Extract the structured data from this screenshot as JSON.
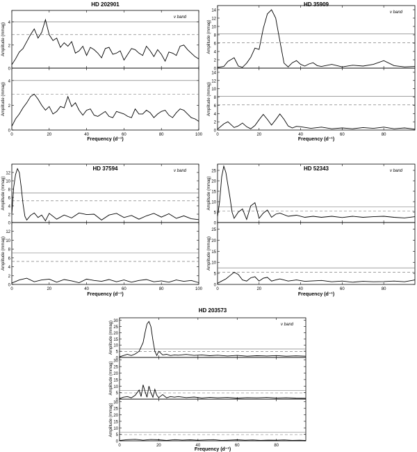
{
  "figure_title": "",
  "chart_data": [
    {
      "type": "line",
      "title": "HD 202901",
      "band_label": "v band",
      "xlabel": "Frequency (d⁻¹)",
      "ylabel": "Amplitude (mmag)",
      "xlim": [
        0,
        100
      ],
      "xticks": [
        0,
        20,
        40,
        60,
        80,
        100
      ],
      "grid": false,
      "panels": [
        {
          "ylim": [
            0,
            5
          ],
          "yticks": [
            0,
            2,
            4
          ],
          "threshold_solid": 4.0,
          "threshold_dashed": 2.9,
          "x": [
            0,
            2,
            4,
            6,
            8,
            10,
            12,
            14,
            16,
            18,
            20,
            22,
            24,
            26,
            28,
            30,
            32,
            34,
            36,
            38,
            40,
            42,
            44,
            46,
            48,
            50,
            52,
            54,
            56,
            58,
            60,
            62,
            64,
            66,
            68,
            70,
            72,
            74,
            76,
            78,
            80,
            82,
            84,
            86,
            88,
            90,
            92,
            94,
            96,
            98,
            100
          ],
          "y": [
            0.3,
            0.8,
            1.4,
            1.7,
            2.3,
            2.9,
            3.4,
            2.6,
            3.1,
            4.2,
            2.9,
            2.4,
            2.6,
            1.8,
            2.2,
            1.9,
            2.3,
            1.3,
            1.5,
            1.9,
            1.1,
            1.8,
            1.6,
            1.3,
            0.9,
            1.7,
            1.8,
            1.2,
            1.3,
            1.5,
            0.7,
            1.2,
            1.7,
            1.6,
            1.3,
            1.1,
            1.9,
            1.5,
            1.0,
            1.6,
            1.2,
            0.6,
            1.4,
            1.3,
            1.1,
            1.9,
            2.0,
            1.6,
            1.3,
            1.0,
            0.8
          ]
        },
        {
          "ylim": [
            0,
            5
          ],
          "yticks": [
            0,
            2,
            4
          ],
          "threshold_solid": 4.0,
          "threshold_dashed": 2.9,
          "x": [
            0,
            2,
            4,
            6,
            8,
            10,
            12,
            14,
            16,
            18,
            20,
            22,
            24,
            26,
            28,
            30,
            32,
            34,
            36,
            38,
            40,
            42,
            44,
            46,
            48,
            50,
            52,
            54,
            56,
            58,
            60,
            62,
            64,
            66,
            68,
            70,
            72,
            74,
            76,
            78,
            80,
            82,
            84,
            86,
            88,
            90,
            92,
            94,
            96,
            98,
            100
          ],
          "y": [
            0.3,
            0.9,
            1.3,
            1.8,
            2.2,
            2.7,
            2.9,
            2.5,
            2.0,
            1.6,
            1.9,
            1.3,
            1.5,
            1.9,
            1.8,
            2.7,
            1.9,
            2.2,
            1.6,
            1.2,
            1.6,
            1.7,
            1.2,
            1.1,
            1.3,
            1.5,
            1.1,
            1.0,
            1.5,
            1.4,
            1.3,
            1.1,
            1.0,
            1.7,
            1.3,
            1.3,
            1.6,
            1.4,
            1.0,
            1.3,
            1.5,
            1.6,
            1.2,
            1.0,
            1.4,
            1.7,
            1.6,
            1.3,
            1.0,
            0.9,
            0.7
          ]
        }
      ]
    },
    {
      "type": "line",
      "title": "HD 35909",
      "band_label": "v band",
      "xlabel": "Frequency (d⁻¹)",
      "ylabel": "Amplitude (mmag)",
      "xlim": [
        0,
        95
      ],
      "xticks": [
        0,
        20,
        40,
        60,
        80
      ],
      "grid": false,
      "panels": [
        {
          "ylim": [
            0,
            15
          ],
          "yticks": [
            0,
            2,
            4,
            6,
            8,
            10,
            12,
            14
          ],
          "threshold_solid": 8.2,
          "threshold_dashed": 6.1,
          "x": [
            0,
            3,
            5,
            8,
            10,
            12,
            14,
            16,
            18,
            20,
            22,
            24,
            26,
            28,
            30,
            32,
            34,
            36,
            38,
            40,
            42,
            44,
            46,
            48,
            50,
            55,
            60,
            65,
            70,
            75,
            80,
            85,
            90,
            95
          ],
          "y": [
            0.2,
            0.4,
            1.6,
            2.5,
            0.5,
            0.2,
            1.2,
            2.6,
            4.8,
            4.5,
            9.5,
            13.0,
            14.0,
            12.0,
            6.5,
            1.2,
            0.3,
            1.3,
            1.8,
            0.9,
            0.5,
            1.0,
            1.3,
            0.6,
            0.4,
            0.9,
            0.3,
            0.7,
            0.5,
            0.9,
            1.8,
            0.6,
            0.3,
            0.4
          ]
        },
        {
          "ylim": [
            0,
            15
          ],
          "yticks": [
            0,
            2,
            4,
            6,
            8,
            10,
            12,
            14
          ],
          "threshold_solid": 8.2,
          "threshold_dashed": 6.1,
          "x": [
            0,
            3,
            5,
            8,
            10,
            12,
            14,
            16,
            18,
            20,
            22,
            24,
            26,
            28,
            30,
            32,
            34,
            36,
            38,
            40,
            45,
            50,
            55,
            60,
            65,
            70,
            75,
            80,
            85,
            90,
            95
          ],
          "y": [
            0.2,
            1.5,
            2.0,
            0.6,
            1.0,
            1.7,
            0.8,
            0.3,
            1.1,
            2.5,
            3.8,
            2.6,
            1.2,
            2.5,
            3.9,
            2.6,
            1.0,
            0.5,
            0.9,
            0.8,
            0.4,
            0.7,
            0.3,
            0.5,
            0.3,
            0.6,
            0.4,
            0.7,
            0.3,
            0.5,
            0.2
          ]
        }
      ]
    },
    {
      "type": "line",
      "title": "HD 37594",
      "band_label": "v band",
      "xlabel": "Frequency (d⁻¹)",
      "ylabel": "Amplitude (mmag)",
      "xlim": [
        0,
        100
      ],
      "xticks": [
        0,
        20,
        40,
        60,
        80,
        100
      ],
      "grid": false,
      "panels": [
        {
          "ylim": [
            0,
            14
          ],
          "yticks": [
            0,
            2,
            4,
            6,
            8,
            10,
            12
          ],
          "threshold_solid": 7.1,
          "threshold_dashed": 5.2,
          "x": [
            0,
            1,
            2,
            3,
            4,
            5,
            6,
            7,
            8,
            10,
            12,
            14,
            16,
            18,
            20,
            24,
            28,
            32,
            36,
            40,
            44,
            48,
            52,
            56,
            60,
            64,
            68,
            72,
            76,
            80,
            84,
            88,
            92,
            96,
            100
          ],
          "y": [
            2.0,
            8.5,
            11.5,
            12.9,
            12.0,
            8.5,
            4.5,
            1.5,
            0.6,
            1.7,
            2.3,
            1.2,
            1.8,
            0.4,
            2.2,
            0.8,
            1.8,
            1.1,
            2.3,
            1.9,
            2.0,
            0.6,
            1.8,
            2.2,
            1.2,
            1.7,
            0.8,
            1.6,
            2.2,
            1.3,
            2.1,
            1.0,
            1.6,
            0.9,
            0.7
          ]
        },
        {
          "ylim": [
            0,
            14
          ],
          "yticks": [
            0,
            2,
            4,
            6,
            8,
            10,
            12
          ],
          "threshold_solid": 7.1,
          "threshold_dashed": 5.2,
          "x": [
            0,
            4,
            8,
            12,
            16,
            20,
            24,
            28,
            32,
            36,
            40,
            44,
            48,
            52,
            56,
            60,
            64,
            68,
            72,
            76,
            80,
            84,
            88,
            92,
            96,
            100
          ],
          "y": [
            0.3,
            1.0,
            1.4,
            0.6,
            1.0,
            1.2,
            0.5,
            1.1,
            0.8,
            0.4,
            1.2,
            0.9,
            0.7,
            1.1,
            0.6,
            1.0,
            0.5,
            0.9,
            1.1,
            0.6,
            0.8,
            0.5,
            1.0,
            0.7,
            0.9,
            0.4
          ]
        }
      ]
    },
    {
      "type": "line",
      "title": "HD 52343",
      "band_label": "v band",
      "xlabel": "Frequency (d⁻¹)",
      "ylabel": "Amplitude (mmag)",
      "xlim": [
        0,
        95
      ],
      "xticks": [
        0,
        20,
        40,
        60,
        80
      ],
      "grid": false,
      "panels": [
        {
          "ylim": [
            0,
            28
          ],
          "yticks": [
            0,
            5,
            10,
            15,
            20,
            25
          ],
          "threshold_solid": 7.5,
          "threshold_dashed": 5.5,
          "x": [
            0,
            1,
            2,
            3,
            4,
            5,
            6,
            7,
            8,
            10,
            12,
            14,
            16,
            18,
            20,
            22,
            24,
            26,
            28,
            30,
            34,
            38,
            42,
            46,
            50,
            55,
            60,
            65,
            70,
            75,
            80,
            85,
            90,
            95
          ],
          "y": [
            3.0,
            10,
            22,
            27,
            24,
            18,
            12,
            5,
            2,
            5.0,
            6.5,
            1.5,
            8.0,
            9.5,
            2.0,
            4.5,
            6.0,
            2.5,
            4.0,
            4.5,
            3.0,
            3.5,
            2.5,
            3.0,
            2.5,
            3.0,
            2.4,
            3.0,
            2.5,
            2.8,
            3.0,
            2.5,
            2.2,
            2.8
          ]
        },
        {
          "ylim": [
            0,
            28
          ],
          "yticks": [
            0,
            5,
            10,
            15,
            20,
            25
          ],
          "threshold_solid": 7.5,
          "threshold_dashed": 5.5,
          "x": [
            0,
            2,
            4,
            6,
            8,
            10,
            12,
            14,
            16,
            18,
            20,
            22,
            24,
            26,
            28,
            30,
            34,
            38,
            42,
            46,
            50,
            55,
            60,
            65,
            70,
            75,
            80,
            85,
            90,
            95
          ],
          "y": [
            0.5,
            1.5,
            2.5,
            4.0,
            5.5,
            4.5,
            2.0,
            1.5,
            3.0,
            3.5,
            1.5,
            2.8,
            3.2,
            1.5,
            2.0,
            2.5,
            1.5,
            2.0,
            1.4,
            1.6,
            1.8,
            1.2,
            1.5,
            1.0,
            1.4,
            1.2,
            1.3,
            1.5,
            1.2,
            2.0
          ]
        }
      ]
    },
    {
      "type": "line",
      "title": "HD 203573",
      "band_label": "v band",
      "xlabel": "Frequency (d⁻¹)",
      "ylabel": "Amplitude (mmag)",
      "xlim": [
        0,
        95
      ],
      "xticks": [
        0,
        20,
        40,
        60,
        80
      ],
      "grid": false,
      "panels": [
        {
          "ylim": [
            0,
            32
          ],
          "yticks": [
            0,
            5,
            10,
            15,
            20,
            25,
            30
          ],
          "threshold_solid": 6.8,
          "threshold_dashed": 4.8,
          "x": [
            0,
            2,
            4,
            6,
            8,
            10,
            12,
            13,
            14,
            15,
            16,
            17,
            18,
            19,
            20,
            22,
            24,
            26,
            28,
            30,
            34,
            38,
            42,
            46,
            50,
            55,
            60,
            65,
            70,
            75,
            80,
            85,
            90,
            95
          ],
          "y": [
            0.5,
            1.5,
            2.5,
            1.5,
            2.8,
            5.0,
            12.0,
            20.0,
            27.0,
            29.0,
            25.0,
            14.0,
            5.0,
            1.5,
            5.0,
            2.0,
            2.5,
            1.5,
            2.0,
            1.8,
            2.4,
            1.6,
            2.0,
            1.4,
            1.8,
            1.2,
            1.6,
            1.0,
            1.4,
            1.2,
            1.5,
            1.0,
            1.3,
            1.0
          ]
        },
        {
          "ylim": [
            0,
            32
          ],
          "yticks": [
            0,
            5,
            10,
            15,
            20,
            25,
            30
          ],
          "threshold_solid": 6.8,
          "threshold_dashed": 4.8,
          "x": [
            0,
            2,
            4,
            6,
            8,
            10,
            11,
            12,
            13,
            14,
            15,
            16,
            17,
            18,
            19,
            20,
            22,
            24,
            26,
            28,
            30,
            34,
            38,
            42,
            46,
            50,
            55,
            60,
            65,
            70,
            75,
            80,
            85,
            90,
            95
          ],
          "y": [
            0.5,
            1.5,
            2.0,
            1.0,
            3.0,
            7.0,
            2.0,
            11.0,
            6.0,
            1.5,
            10.0,
            5.0,
            1.5,
            7.5,
            3.0,
            1.2,
            3.5,
            1.0,
            2.0,
            1.5,
            2.0,
            1.2,
            1.6,
            0.9,
            1.4,
            1.0,
            1.3,
            0.8,
            1.2,
            1.0,
            1.3,
            0.9,
            1.1,
            0.8,
            0.7
          ]
        },
        {
          "ylim": [
            0,
            32
          ],
          "yticks": [
            0,
            5,
            10,
            15,
            20,
            25,
            30
          ],
          "threshold_solid": 6.8,
          "threshold_dashed": 4.8,
          "x": [
            0,
            4,
            8,
            12,
            16,
            20,
            24,
            28,
            32,
            36,
            40,
            44,
            48,
            52,
            56,
            60,
            64,
            68,
            72,
            76,
            80,
            84,
            88,
            92,
            95
          ],
          "y": [
            0.3,
            0.9,
            1.2,
            0.5,
            1.0,
            0.8,
            0.4,
            0.9,
            0.6,
            0.8,
            0.5,
            0.7,
            0.9,
            0.4,
            0.6,
            0.8,
            0.5,
            0.7,
            0.4,
            0.6,
            0.5,
            0.7,
            0.4,
            0.5,
            0.3
          ]
        }
      ]
    }
  ]
}
